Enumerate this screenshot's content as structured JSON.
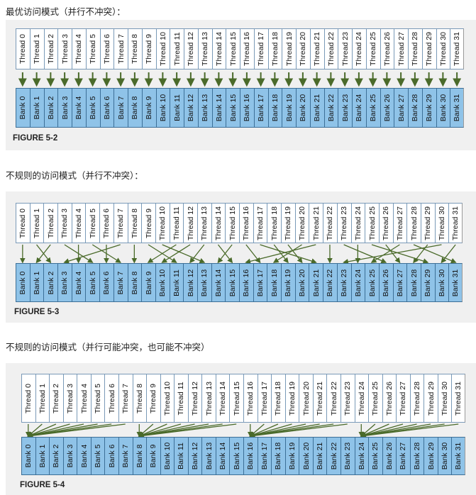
{
  "thread_prefix": "Thread",
  "bank_prefix": "Bank",
  "count": 32,
  "arrow_color": "#4a6a2a",
  "sections": [
    {
      "heading": "最优访问模式（并行不冲突）：",
      "caption": "FIGURE 5-2",
      "mapping": [
        0,
        1,
        2,
        3,
        4,
        5,
        6,
        7,
        8,
        9,
        10,
        11,
        12,
        13,
        14,
        15,
        16,
        17,
        18,
        19,
        20,
        21,
        22,
        23,
        24,
        25,
        26,
        27,
        28,
        29,
        30,
        31
      ]
    },
    {
      "heading": "不规则的访问模式（并行不冲突）：",
      "caption": "FIGURE 5-3",
      "mapping": [
        0,
        2,
        1,
        5,
        4,
        7,
        6,
        3,
        8,
        11,
        13,
        9,
        10,
        12,
        15,
        14,
        17,
        21,
        19,
        20,
        18,
        16,
        22,
        26,
        24,
        29,
        27,
        25,
        31,
        28,
        23,
        30
      ]
    },
    {
      "heading": "不规则的访问模式（并行可能冲突，也可能不冲突）",
      "caption": "FIGURE 5-4",
      "mapping": [
        0,
        0,
        0,
        0,
        0,
        0,
        0,
        0,
        8,
        8,
        8,
        8,
        8,
        8,
        8,
        8,
        16,
        16,
        16,
        16,
        16,
        16,
        16,
        16,
        24,
        24,
        24,
        24,
        24,
        24,
        24,
        24
      ]
    }
  ]
}
